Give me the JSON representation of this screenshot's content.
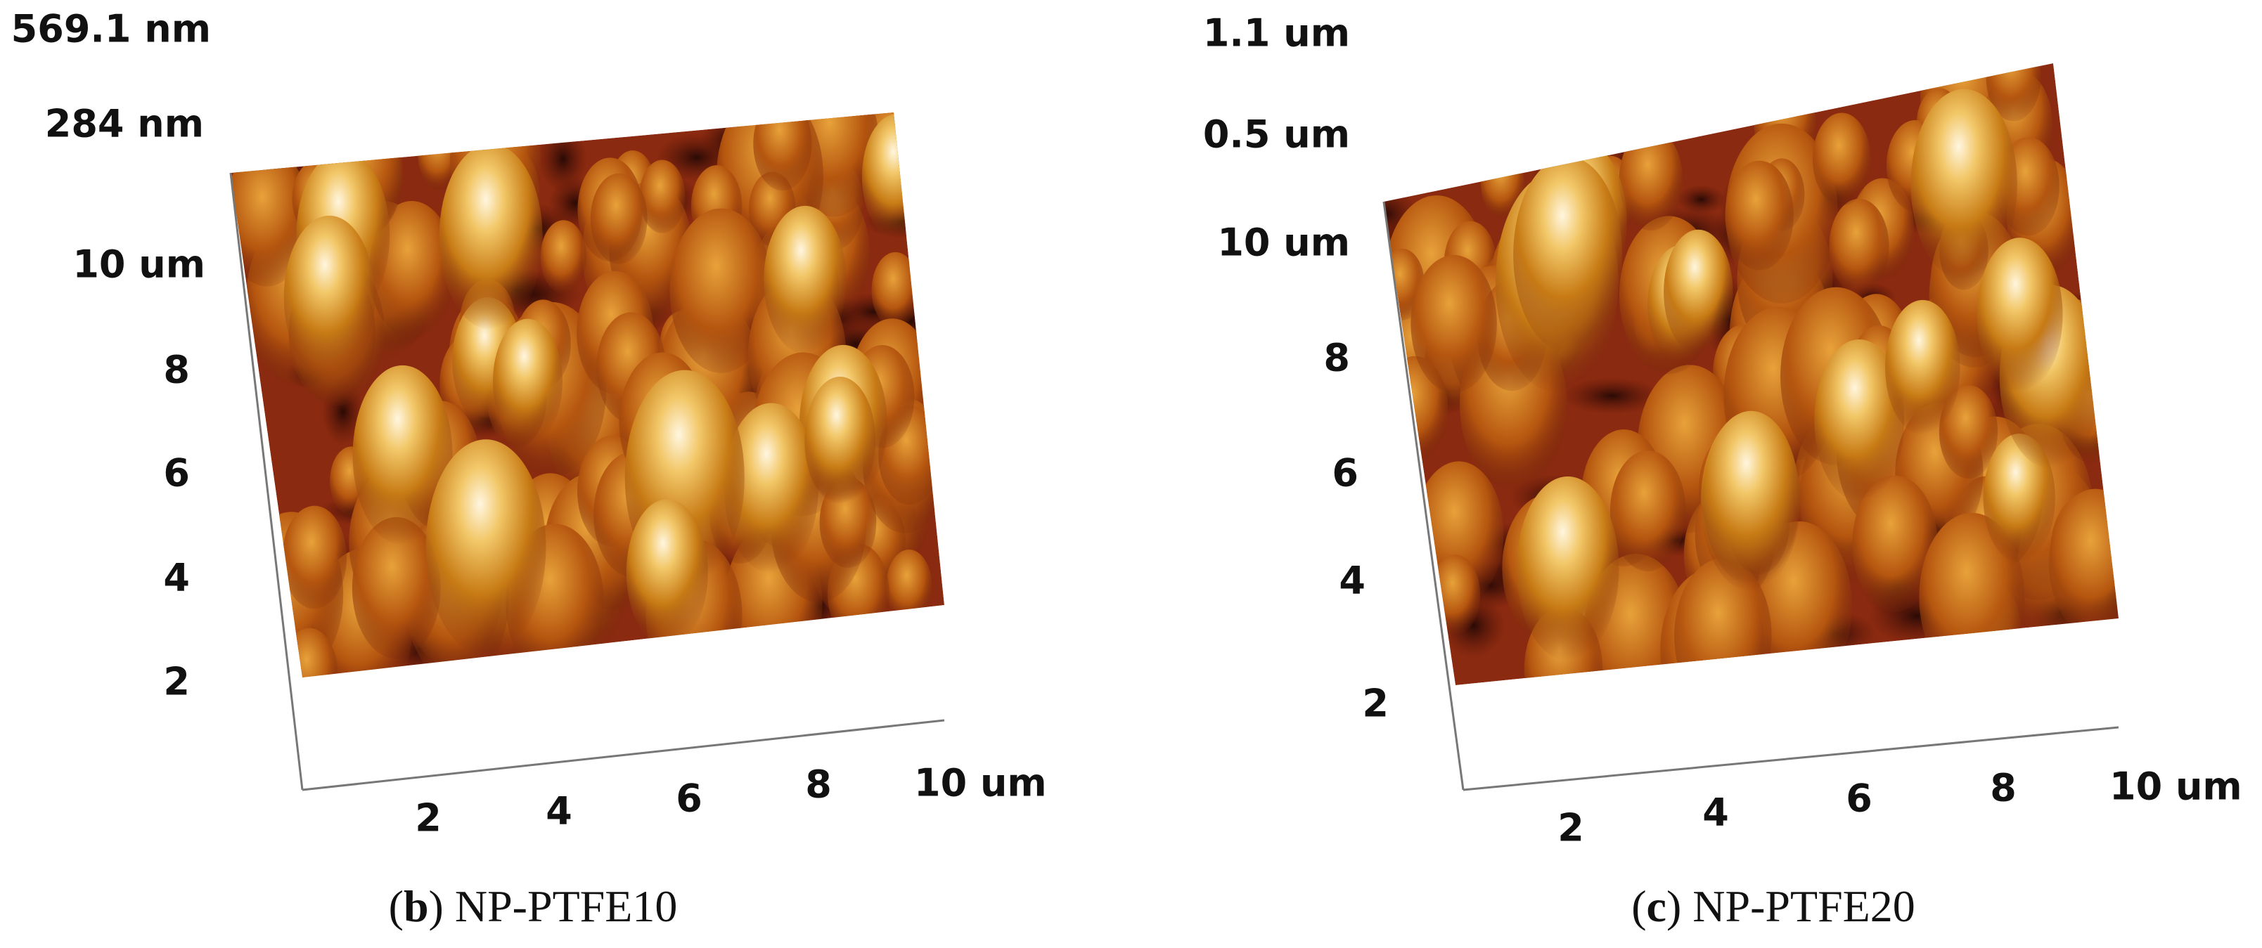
{
  "panels": [
    {
      "z_labels": [
        "569.1 nm",
        "284 nm"
      ],
      "y_labels": [
        "10 um",
        "8",
        "6",
        "4",
        "2"
      ],
      "x_labels": [
        "2",
        "4",
        "6",
        "8",
        "10 um"
      ],
      "caption": {
        "open": "(",
        "letter": "b",
        "rest": ") NP-PTFE10"
      }
    },
    {
      "z_labels": [
        "1.1 um",
        "0.5 um"
      ],
      "y_labels": [
        "10 um",
        "8",
        "6",
        "4",
        "2"
      ],
      "x_labels": [
        "2",
        "4",
        "6",
        "8",
        "10 um"
      ],
      "caption": {
        "open": "(",
        "letter": "c",
        "rest": ") NP-PTFE20"
      }
    }
  ]
}
